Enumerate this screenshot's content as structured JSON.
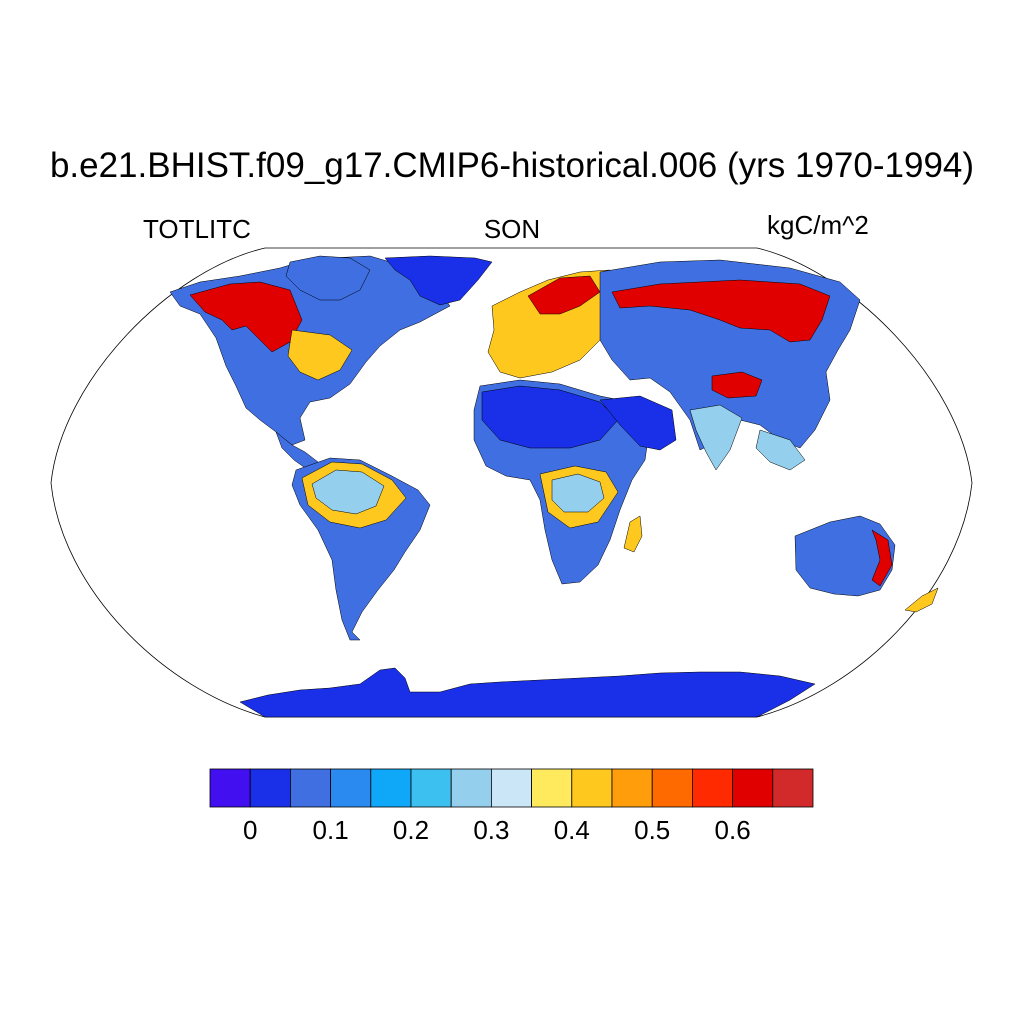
{
  "figure": {
    "title": "b.e21.BHIST.f09_g17.CMIP6-historical.006 (yrs 1970-1994)",
    "left_label": "TOTLITC",
    "center_label": "SON",
    "right_label": "kgC/m^2"
  },
  "colorbar": {
    "colors": [
      "#4210f0",
      "#1a2fe8",
      "#3f6fe0",
      "#2b8af0",
      "#0fa8f8",
      "#3cc0f0",
      "#94cfee",
      "#cbe6f6",
      "#ffea5e",
      "#ffc81e",
      "#ff9e0a",
      "#ff6a00",
      "#ff2a00",
      "#e00000",
      "#d22a2a"
    ],
    "tick_labels": [
      "0",
      "0.1",
      "0.2",
      "0.3",
      "0.4",
      "0.5",
      "0.6"
    ],
    "tick_values": [
      0,
      0.1,
      0.2,
      0.3,
      0.4,
      0.5,
      0.6
    ],
    "levels": [
      0,
      0.05,
      0.1,
      0.15,
      0.2,
      0.25,
      0.3,
      0.35,
      0.4,
      0.45,
      0.5,
      0.55,
      0.6,
      0.65
    ]
  },
  "map_data": {
    "projection": "Robinson",
    "fill_colors": {
      "ocean": "#ffffff",
      "antarctica": "#1a2fe8",
      "desert": "#1a2fe8",
      "low": "#3f6fe0",
      "mid": "#94cfee",
      "tropical_rim": "#ffc81e",
      "boreal": "#e00000"
    }
  }
}
